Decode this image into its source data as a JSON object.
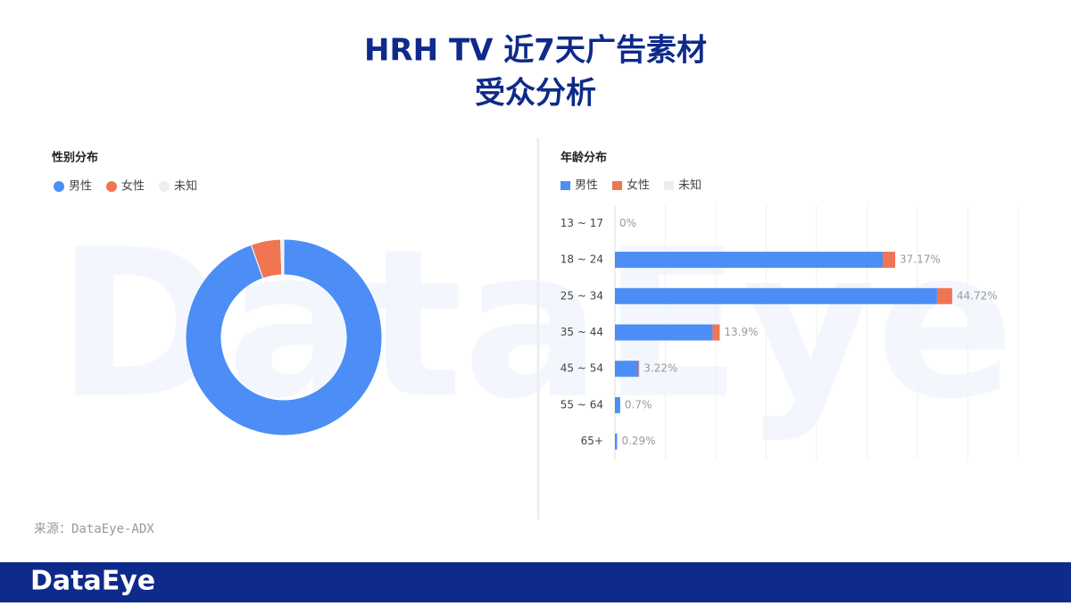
{
  "header": {
    "title_lines": [
      "HRH TV 近7天广告素材",
      "受众分析"
    ]
  },
  "watermark": "DataEye",
  "source": "来源：DataEye-ADX",
  "footer": {
    "logo": "DataEye"
  },
  "chart_data": [
    {
      "type": "pie",
      "title": "性别分布",
      "donut": true,
      "categories": [
        "男性",
        "女性",
        "未知"
      ],
      "values": [
        94.6,
        4.9,
        0.5
      ],
      "colors": [
        "#4c8ef5",
        "#f07553",
        "#eeeeee"
      ]
    },
    {
      "type": "bar",
      "title": "年龄分布",
      "orientation": "horizontal",
      "stacked": true,
      "categories": [
        "13 ~ 17",
        "18 ~ 24",
        "25 ~ 34",
        "35 ~ 44",
        "45 ~ 54",
        "55 ~ 64",
        "65+"
      ],
      "series": [
        {
          "name": "男性",
          "color": "#4c8ef5",
          "values": [
            0,
            35.51,
            42.72,
            12.95,
            3.12,
            0.7,
            0.29
          ]
        },
        {
          "name": "女性",
          "color": "#f07553",
          "values": [
            0,
            1.66,
            2.0,
            0.95,
            0.1,
            0,
            0
          ]
        },
        {
          "name": "未知",
          "color": "#eeeeee",
          "values": [
            0,
            0,
            0,
            0,
            0,
            0,
            0
          ]
        }
      ],
      "totals": [
        0,
        37.17,
        44.72,
        13.9,
        3.22,
        0.7,
        0.29
      ],
      "total_labels": [
        "0%",
        "37.17%",
        "44.72%",
        "13.9%",
        "3.22%",
        "0.7%",
        "0.29%"
      ],
      "xlim": [
        0,
        53.5
      ],
      "grid": true
    }
  ]
}
